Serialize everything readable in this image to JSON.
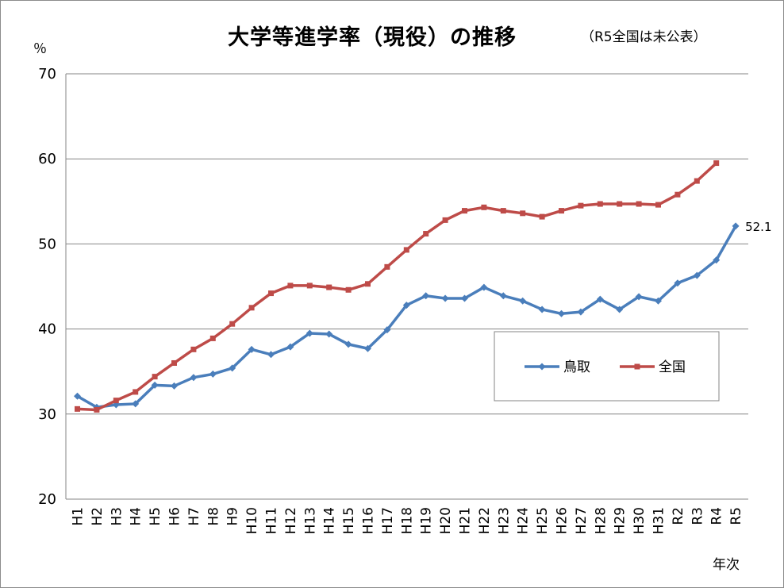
{
  "chart_data": {
    "type": "line",
    "title": "大学等進学率（現役）の推移",
    "note": "（R5全国は未公表）",
    "ylabel": "％",
    "xlabel": "年次",
    "ylim": [
      20,
      70
    ],
    "yticks": [
      20,
      30,
      40,
      50,
      60,
      70
    ],
    "grid": true,
    "legend_position": "center-right",
    "categories": [
      "H1",
      "H2",
      "H3",
      "H4",
      "H5",
      "H6",
      "H7",
      "H8",
      "H9",
      "H10",
      "H11",
      "H12",
      "H13",
      "H14",
      "H15",
      "H16",
      "H17",
      "H18",
      "H19",
      "H20",
      "H21",
      "H22",
      "H23",
      "H24",
      "H25",
      "H26",
      "H27",
      "H28",
      "H29",
      "H30",
      "H31",
      "R2",
      "R3",
      "R4",
      "R5"
    ],
    "series": [
      {
        "name": "鳥取",
        "color": "#4a7ebb",
        "marker": "diamond",
        "values": [
          32.1,
          30.8,
          31.1,
          31.2,
          33.4,
          33.3,
          34.3,
          34.7,
          35.4,
          37.6,
          37.0,
          37.9,
          39.5,
          39.4,
          38.2,
          37.7,
          39.9,
          42.8,
          43.9,
          43.6,
          43.6,
          44.9,
          43.9,
          43.3,
          42.3,
          41.8,
          42.0,
          43.5,
          42.3,
          43.8,
          43.3,
          45.4,
          46.3,
          48.1,
          52.1
        ]
      },
      {
        "name": "全国",
        "color": "#be4b48",
        "marker": "square",
        "values": [
          30.6,
          30.5,
          31.6,
          32.6,
          34.4,
          36.0,
          37.6,
          38.9,
          40.6,
          42.5,
          44.2,
          45.1,
          45.1,
          44.9,
          44.6,
          45.3,
          47.3,
          49.3,
          51.2,
          52.8,
          53.9,
          54.3,
          53.9,
          53.6,
          53.2,
          53.9,
          54.5,
          54.7,
          54.7,
          54.7,
          54.6,
          55.8,
          57.4,
          59.5,
          null
        ]
      }
    ],
    "annotations": [
      {
        "series": "鳥取",
        "category": "R5",
        "text": "52.1"
      }
    ]
  }
}
